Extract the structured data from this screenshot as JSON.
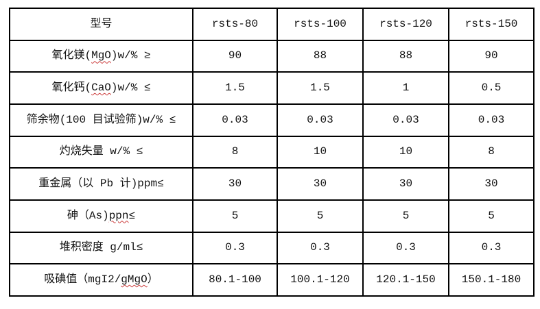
{
  "colors": {
    "background": "#ffffff",
    "border": "#000000",
    "text": "#111111",
    "wavy_underline": "#cc3b3b"
  },
  "table": {
    "header_row": {
      "type_label": "型号",
      "models": [
        "rsts-80",
        "rsts-100",
        "rsts-120",
        "rsts-150"
      ]
    },
    "rows": [
      {
        "label_parts": [
          {
            "t": "氧化镁("
          },
          {
            "t": "MgO",
            "wavy": true
          },
          {
            "t": ")w/% ≥"
          }
        ],
        "values": [
          "90",
          "88",
          "88",
          "90"
        ]
      },
      {
        "label_parts": [
          {
            "t": "氧化钙("
          },
          {
            "t": "CaO",
            "wavy": true
          },
          {
            "t": ")w/% ≤"
          }
        ],
        "values": [
          "1.5",
          "1.5",
          "1",
          "0.5"
        ]
      },
      {
        "label_parts": [
          {
            "t": "筛余物(100 目试验筛)w/% ≤"
          }
        ],
        "values": [
          "0.03",
          "0.03",
          "0.03",
          "0.03"
        ]
      },
      {
        "label_parts": [
          {
            "t": "灼烧失量 w/% ≤"
          }
        ],
        "values": [
          "8",
          "10",
          "10",
          "8"
        ]
      },
      {
        "label_parts": [
          {
            "t": "重金属（以 Pb 计)ppm≤"
          }
        ],
        "values": [
          "30",
          "30",
          "30",
          "30"
        ]
      },
      {
        "label_parts": [
          {
            "t": "砷（As)"
          },
          {
            "t": "ppn",
            "wavy": true
          },
          {
            "t": "≤"
          }
        ],
        "values": [
          "5",
          "5",
          "5",
          "5"
        ]
      },
      {
        "label_parts": [
          {
            "t": "堆积密度 g/ml≤"
          }
        ],
        "values": [
          "0.3",
          "0.3",
          "0.3",
          "0.3"
        ]
      },
      {
        "label_parts": [
          {
            "t": "吸碘值（mgI2/"
          },
          {
            "t": "gMgO",
            "wavy": true
          },
          {
            "t": "）"
          }
        ],
        "values": [
          "80.1-100",
          "100.1-120",
          "120.1-150",
          "150.1-180"
        ]
      }
    ]
  }
}
